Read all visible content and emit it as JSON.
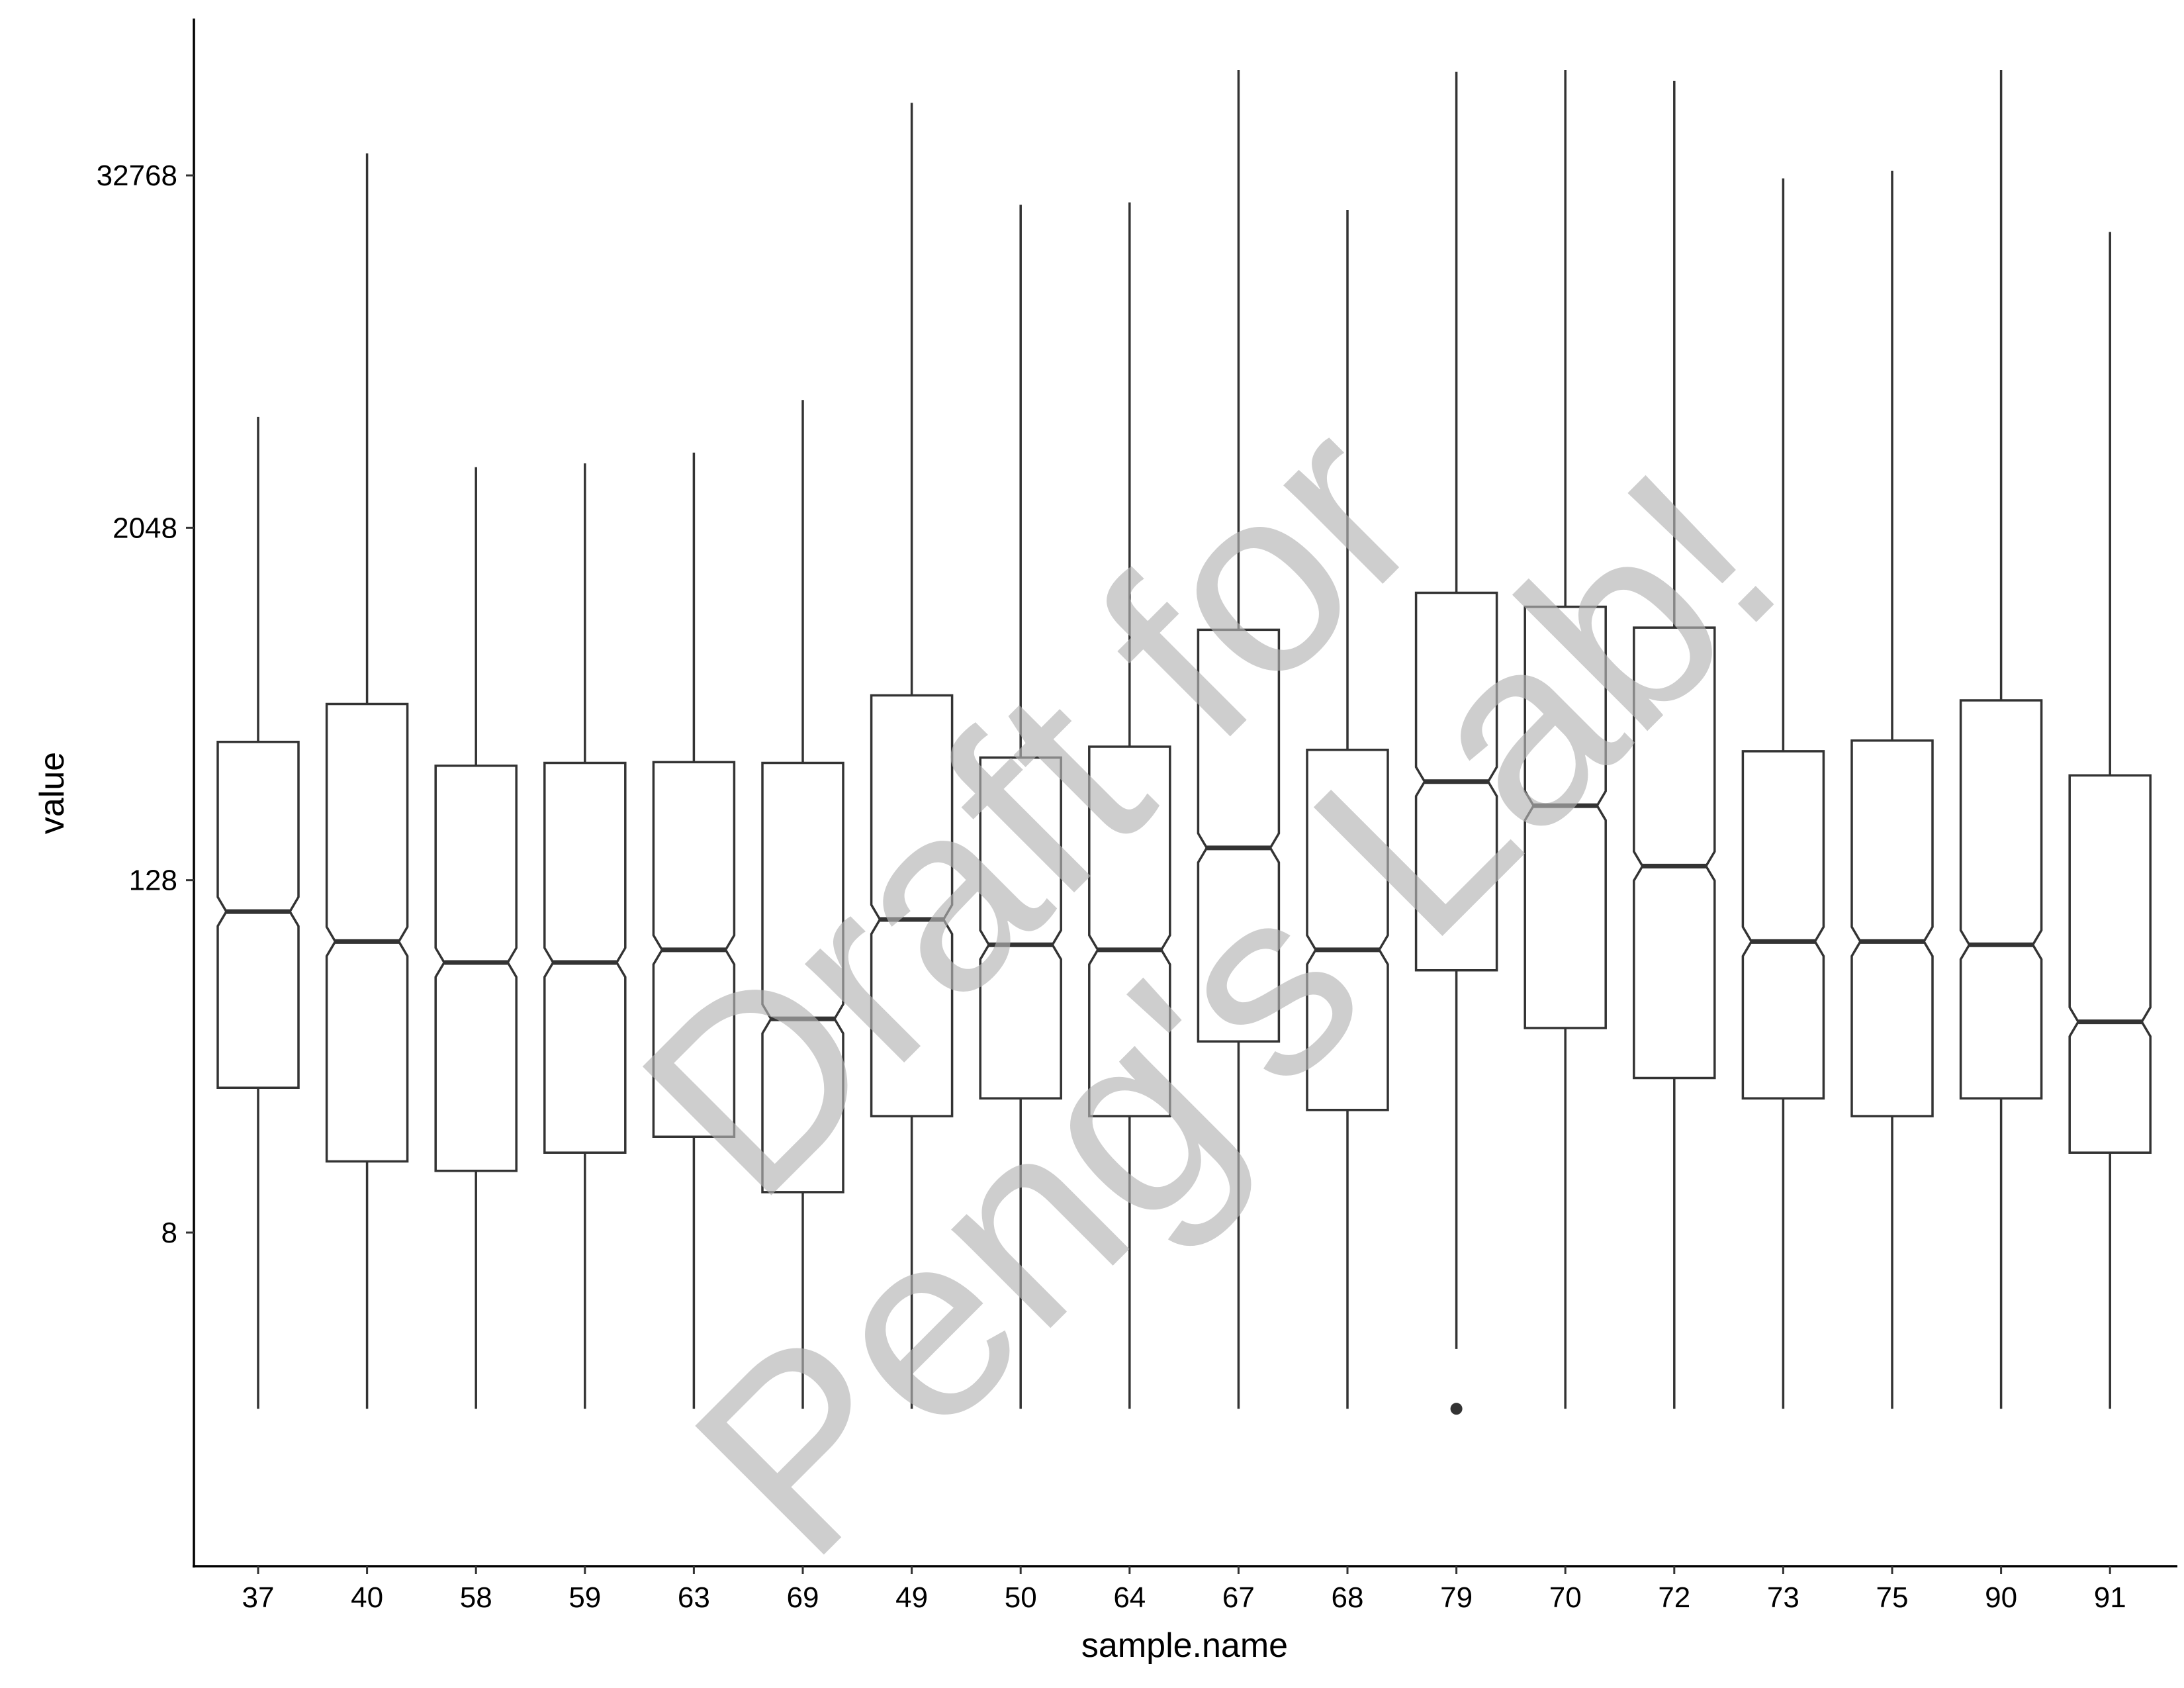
{
  "chart_data": {
    "type": "boxplot",
    "xlabel": "sample.name",
    "ylabel": "value",
    "y_scale": "log2",
    "ylim": [
      1.3,
      110000
    ],
    "yticks": [
      8,
      128,
      2048,
      32768
    ],
    "ytick_labels": [
      "8",
      "128",
      "2048",
      "32768"
    ],
    "notched": true,
    "grid": false,
    "categories": [
      "37",
      "40",
      "58",
      "59",
      "63",
      "69",
      "49",
      "50",
      "64",
      "67",
      "68",
      "79",
      "70",
      "72",
      "73",
      "75",
      "90",
      "91"
    ],
    "boxes": [
      {
        "name": "37",
        "min": 2,
        "q1": 25,
        "median": 100,
        "q3": 380,
        "max": 4900
      },
      {
        "name": "40",
        "min": 2,
        "q1": 14,
        "median": 79,
        "q3": 512,
        "max": 39000
      },
      {
        "name": "58",
        "min": 2,
        "q1": 13,
        "median": 67,
        "q3": 315,
        "max": 3300
      },
      {
        "name": "59",
        "min": 2,
        "q1": 15,
        "median": 67,
        "q3": 322,
        "max": 3400
      },
      {
        "name": "63",
        "min": 2,
        "q1": 17,
        "median": 74,
        "q3": 324,
        "max": 3700
      },
      {
        "name": "69",
        "min": 2,
        "q1": 11,
        "median": 43,
        "q3": 322,
        "max": 5600
      },
      {
        "name": "49",
        "min": 2,
        "q1": 20,
        "median": 94,
        "q3": 548,
        "max": 58000
      },
      {
        "name": "50",
        "min": 2,
        "q1": 23,
        "median": 77,
        "q3": 336,
        "max": 26000
      },
      {
        "name": "64",
        "min": 2,
        "q1": 20,
        "median": 74,
        "q3": 366,
        "max": 26500
      },
      {
        "name": "67",
        "min": 2,
        "q1": 36,
        "median": 165,
        "q3": 918,
        "max": 75000
      },
      {
        "name": "68",
        "min": 2,
        "q1": 21,
        "median": 74,
        "q3": 357,
        "max": 25000
      },
      {
        "name": "79",
        "min": 3.2,
        "q1": 63,
        "median": 278,
        "q3": 1228,
        "max": 74000,
        "outliers": [
          2
        ]
      },
      {
        "name": "70",
        "min": 2,
        "q1": 40,
        "median": 230,
        "q3": 1100,
        "max": 75000
      },
      {
        "name": "72",
        "min": 2,
        "q1": 27,
        "median": 143,
        "q3": 934,
        "max": 69000
      },
      {
        "name": "73",
        "min": 2,
        "q1": 23,
        "median": 79,
        "q3": 353,
        "max": 32000
      },
      {
        "name": "75",
        "min": 2,
        "q1": 20,
        "median": 79,
        "q3": 384,
        "max": 34000
      },
      {
        "name": "90",
        "min": 2,
        "q1": 23,
        "median": 77,
        "q3": 527,
        "max": 75000
      },
      {
        "name": "91",
        "min": 2,
        "q1": 15,
        "median": 42,
        "q3": 292,
        "max": 21000
      }
    ]
  },
  "watermark": {
    "line1": "Draft for",
    "line2": "Peng's Lab!"
  }
}
